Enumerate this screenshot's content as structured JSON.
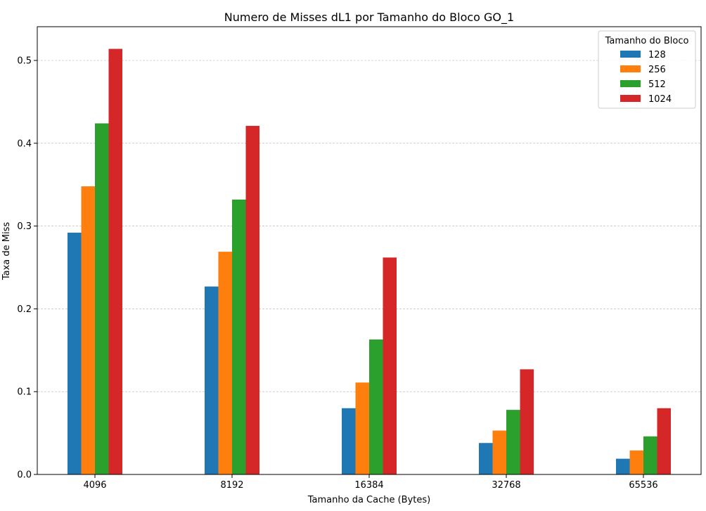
{
  "chart_data": {
    "type": "bar",
    "title": "Numero de Misses dL1 por Tamanho do Bloco GO_1",
    "xlabel": "Tamanho da Cache (Bytes)",
    "ylabel": "Taxa de Miss",
    "categories": [
      "4096",
      "8192",
      "16384",
      "32768",
      "65536"
    ],
    "ylim": [
      0,
      0.54
    ],
    "yticks": [
      0.0,
      0.1,
      0.2,
      0.3,
      0.4,
      0.5
    ],
    "ytick_labels": [
      "0.0",
      "0.1",
      "0.2",
      "0.3",
      "0.4",
      "0.5"
    ],
    "grid": "horizontal dashed",
    "legend": {
      "title": "Tamanho do Bloco",
      "position": "top-right"
    },
    "series": [
      {
        "name": "128",
        "color": "#1f77b4",
        "values": [
          0.292,
          0.227,
          0.08,
          0.038,
          0.019
        ]
      },
      {
        "name": "256",
        "color": "#ff7f0e",
        "values": [
          0.348,
          0.269,
          0.111,
          0.053,
          0.029
        ]
      },
      {
        "name": "512",
        "color": "#2ca02c",
        "values": [
          0.424,
          0.332,
          0.163,
          0.078,
          0.046
        ]
      },
      {
        "name": "1024",
        "color": "#d62728",
        "values": [
          0.514,
          0.421,
          0.262,
          0.127,
          0.08
        ]
      }
    ]
  }
}
